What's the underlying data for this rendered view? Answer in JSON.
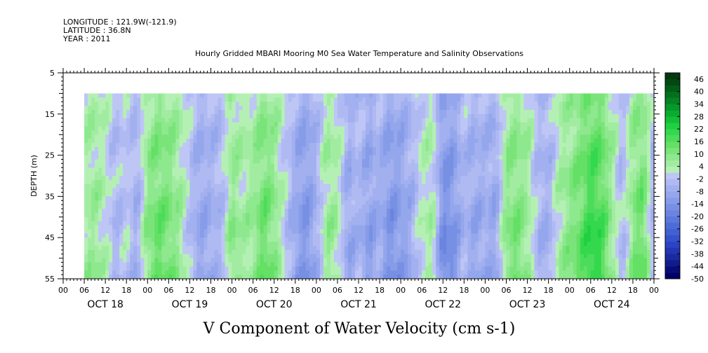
{
  "header": {
    "longitude": "LONGITUDE : 121.9W(-121.9)",
    "latitude": "LATITUDE : 36.8N",
    "year": "YEAR : 2011",
    "subtitle": "Hourly Gridded MBARI Mooring M0 Sea Water Temperature and Salinity Observations"
  },
  "chart_data": {
    "type": "heatmap",
    "title": "V Component of Water Velocity (cm s-1)",
    "ylabel": "DEPTH (m)",
    "xlabel": "",
    "y_range": [
      55,
      5
    ],
    "y_ticks": [
      5,
      15,
      25,
      35,
      45,
      55
    ],
    "data_depth_range": [
      10,
      55
    ],
    "x_start_hour": 0,
    "x_end_hour": 168,
    "data_start_hour": 6,
    "data_end_hour": 168,
    "hour_tick_labels": [
      "00",
      "06",
      "12",
      "18",
      "00",
      "06",
      "12",
      "18",
      "00",
      "06",
      "12",
      "18",
      "00",
      "06",
      "12",
      "18",
      "00",
      "06",
      "12",
      "18",
      "00",
      "06",
      "12",
      "18",
      "00",
      "06",
      "12",
      "18",
      "00"
    ],
    "day_labels": [
      "OCT 18",
      "OCT 19",
      "OCT 20",
      "OCT 21",
      "OCT 22",
      "OCT 23",
      "OCT 24"
    ],
    "colorbar": {
      "labels": [
        "46",
        "40",
        "34",
        "28",
        "22",
        "16",
        "10",
        "4",
        "-2",
        "-8",
        "-14",
        "-20",
        "-26",
        "-32",
        "-38",
        "-44",
        "-50"
      ],
      "levels": [
        -50,
        -47,
        -44,
        -41,
        -38,
        -35,
        -32,
        -29,
        -26,
        -23,
        -20,
        -17,
        -14,
        -11,
        -8,
        -5,
        -2,
        1,
        4,
        7,
        10,
        13,
        16,
        19,
        22,
        25,
        28,
        31,
        34,
        37,
        40,
        43,
        46,
        49
      ],
      "colors": [
        "#000066",
        "#080c78",
        "#111c8c",
        "#1a2aa0",
        "#2236b4",
        "#2c44c4",
        "#3652cc",
        "#4260d2",
        "#4e6cd8",
        "#5c78dc",
        "#6a84e0",
        "#7890e4",
        "#869ce8",
        "#94a6ec",
        "#a2b0f0",
        "#b0baf2",
        "#bec6f6",
        "#b4f0b4",
        "#a2eca2",
        "#8ee88e",
        "#7ae47a",
        "#64e064",
        "#4cdc5c",
        "#34d84c",
        "#20d040",
        "#12c036",
        "#0aac30",
        "#06982a",
        "#048424",
        "#03701e",
        "#025c18",
        "#024812",
        "#01380e"
      ]
    },
    "v_weights_by_hour": [
      {
        "hour": 6,
        "v": 4
      },
      {
        "hour": 9,
        "v": 6
      },
      {
        "hour": 12,
        "v": 2
      },
      {
        "hour": 15,
        "v": -4
      },
      {
        "hour": 18,
        "v": 0
      },
      {
        "hour": 21,
        "v": -6
      },
      {
        "hour": 24,
        "v": 8
      },
      {
        "hour": 27,
        "v": 12
      },
      {
        "hour": 30,
        "v": 10
      },
      {
        "hour": 33,
        "v": 6
      },
      {
        "hour": 36,
        "v": -2
      },
      {
        "hour": 39,
        "v": -8
      },
      {
        "hour": 42,
        "v": -6
      },
      {
        "hour": 45,
        "v": -4
      },
      {
        "hour": 48,
        "v": 8
      },
      {
        "hour": 51,
        "v": 4
      },
      {
        "hour": 54,
        "v": 6
      },
      {
        "hour": 57,
        "v": 12
      },
      {
        "hour": 60,
        "v": 8
      },
      {
        "hour": 63,
        "v": 0
      },
      {
        "hour": 66,
        "v": -8
      },
      {
        "hour": 69,
        "v": -12
      },
      {
        "hour": 72,
        "v": -6
      },
      {
        "hour": 75,
        "v": 6
      },
      {
        "hour": 78,
        "v": 4
      },
      {
        "hour": 81,
        "v": -8
      },
      {
        "hour": 84,
        "v": -4
      },
      {
        "hour": 87,
        "v": -10
      },
      {
        "hour": 90,
        "v": -6
      },
      {
        "hour": 93,
        "v": -12
      },
      {
        "hour": 96,
        "v": -10
      },
      {
        "hour": 99,
        "v": -6
      },
      {
        "hour": 102,
        "v": 2
      },
      {
        "hour": 105,
        "v": 4
      },
      {
        "hour": 108,
        "v": -14
      },
      {
        "hour": 111,
        "v": -12
      },
      {
        "hour": 114,
        "v": -4
      },
      {
        "hour": 117,
        "v": -8
      },
      {
        "hour": 120,
        "v": -6
      },
      {
        "hour": 123,
        "v": -8
      },
      {
        "hour": 126,
        "v": 8
      },
      {
        "hour": 129,
        "v": 10
      },
      {
        "hour": 132,
        "v": 6
      },
      {
        "hour": 135,
        "v": -4
      },
      {
        "hour": 138,
        "v": -6
      },
      {
        "hour": 141,
        "v": 4
      },
      {
        "hour": 144,
        "v": 8
      },
      {
        "hour": 147,
        "v": 12
      },
      {
        "hour": 150,
        "v": 18
      },
      {
        "hour": 153,
        "v": 16
      },
      {
        "hour": 156,
        "v": 6
      },
      {
        "hour": 159,
        "v": -4
      },
      {
        "hour": 162,
        "v": 8
      },
      {
        "hour": 165,
        "v": 12
      },
      {
        "hour": 168,
        "v": -6
      }
    ]
  }
}
